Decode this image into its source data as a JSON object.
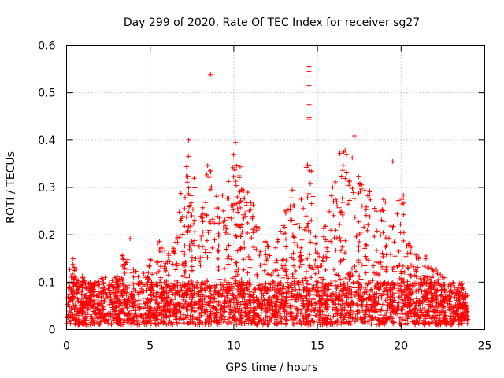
{
  "chart_data": {
    "type": "scatter",
    "title": "Day 299 of 2020, Rate Of TEC Index for receiver sg27",
    "xlabel": "GPS time / hours",
    "ylabel": "ROTI / TECUs",
    "xlim": [
      0,
      25
    ],
    "ylim": [
      0,
      0.6
    ],
    "xticks": [
      0,
      5,
      10,
      15,
      20,
      25
    ],
    "xtick_labels": [
      "0",
      "5",
      "10",
      "15",
      "20",
      "25"
    ],
    "yticks": [
      0,
      0.1,
      0.2,
      0.3,
      0.4,
      0.5,
      0.6
    ],
    "ytick_labels": [
      "0",
      "0.1",
      "0.2",
      "0.3",
      "0.4",
      "0.5",
      "0.6"
    ],
    "grid": true,
    "marker": "+",
    "series": [
      {
        "name": "ROTI",
        "color": "#ff0000",
        "x_range": [
          0,
          24
        ],
        "typical_range": [
          0.01,
          0.1
        ],
        "envelope": {
          "x": [
            0,
            0.5,
            1,
            1.5,
            2,
            3,
            3.5,
            4,
            5,
            5.5,
            6,
            6.5,
            7,
            7.3,
            7.5,
            8,
            8.5,
            9,
            9.5,
            10,
            10.3,
            10.5,
            11,
            11.5,
            12,
            12.5,
            13,
            13.5,
            14,
            14.5,
            15,
            15.5,
            16,
            16.5,
            17,
            17.5,
            18,
            18.5,
            19,
            19.5,
            20,
            20.5,
            21,
            21.5,
            22,
            22.5,
            23,
            23.5,
            24
          ],
          "max": [
            0.14,
            0.15,
            0.12,
            0.1,
            0.11,
            0.11,
            0.16,
            0.13,
            0.15,
            0.2,
            0.16,
            0.2,
            0.3,
            0.39,
            0.32,
            0.24,
            0.35,
            0.3,
            0.28,
            0.39,
            0.35,
            0.3,
            0.29,
            0.22,
            0.2,
            0.19,
            0.28,
            0.3,
            0.28,
            0.38,
            0.2,
            0.22,
            0.32,
            0.38,
            0.37,
            0.33,
            0.3,
            0.26,
            0.28,
            0.22,
            0.29,
            0.18,
            0.17,
            0.16,
            0.13,
            0.12,
            0.1,
            0.1,
            0.08
          ]
        },
        "outliers": [
          {
            "x": 3.8,
            "y": 0.192
          },
          {
            "x": 8.6,
            "y": 0.538
          },
          {
            "x": 7.3,
            "y": 0.4
          },
          {
            "x": 10.1,
            "y": 0.395
          },
          {
            "x": 14.5,
            "y": 0.555
          },
          {
            "x": 14.5,
            "y": 0.545
          },
          {
            "x": 14.5,
            "y": 0.535
          },
          {
            "x": 14.5,
            "y": 0.515
          },
          {
            "x": 14.5,
            "y": 0.475
          },
          {
            "x": 14.5,
            "y": 0.447
          },
          {
            "x": 14.5,
            "y": 0.443
          },
          {
            "x": 17.2,
            "y": 0.408
          },
          {
            "x": 19.5,
            "y": 0.355
          }
        ]
      }
    ]
  }
}
